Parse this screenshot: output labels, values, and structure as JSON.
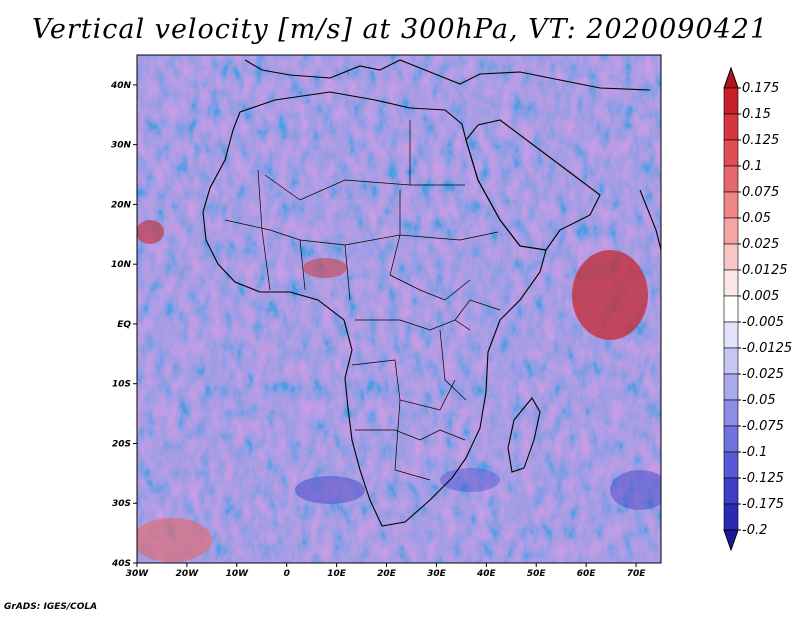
{
  "title": "Vertical velocity [m/s] at 300hPa, VT: 2020090421",
  "credit": "GrADS: IGES/COLA",
  "x_axis": {
    "ticks": [
      "30W",
      "20W",
      "10W",
      "0",
      "10E",
      "20E",
      "30E",
      "40E",
      "50E",
      "60E",
      "70E"
    ],
    "lon_values": [
      -30,
      -20,
      -10,
      0,
      10,
      20,
      30,
      40,
      50,
      60,
      70
    ],
    "range": [
      -30,
      75
    ]
  },
  "y_axis": {
    "ticks": [
      "40S",
      "30S",
      "20S",
      "10S",
      "EQ",
      "10N",
      "20N",
      "30N",
      "40N"
    ],
    "lat_values": [
      -40,
      -30,
      -20,
      -10,
      0,
      10,
      20,
      30,
      40
    ],
    "range": [
      -40,
      45
    ]
  },
  "colorbar": {
    "labels": [
      "0.175",
      "0.15",
      "0.125",
      "0.1",
      "0.075",
      "0.05",
      "0.025",
      "0.0125",
      "0.005",
      "-0.005",
      "-0.0125",
      "-0.025",
      "-0.05",
      "-0.075",
      "-0.1",
      "-0.125",
      "-0.175",
      "-0.2"
    ],
    "colors": [
      "#b3131a",
      "#c8202a",
      "#d8363f",
      "#e04d55",
      "#e8686f",
      "#ef8688",
      "#f5a5a6",
      "#f9c6c6",
      "#fde6e6",
      "#ffffff",
      "#e2e2fb",
      "#c6c6f5",
      "#a9a9ee",
      "#8d8de7",
      "#7272df",
      "#5858d8",
      "#3e3ec8",
      "#2a2ab5",
      "#1a1a9a"
    ]
  },
  "field": {
    "variable": "vertical velocity",
    "units": "m/s",
    "level": "300hPa",
    "valid_time": "2020090421"
  }
}
